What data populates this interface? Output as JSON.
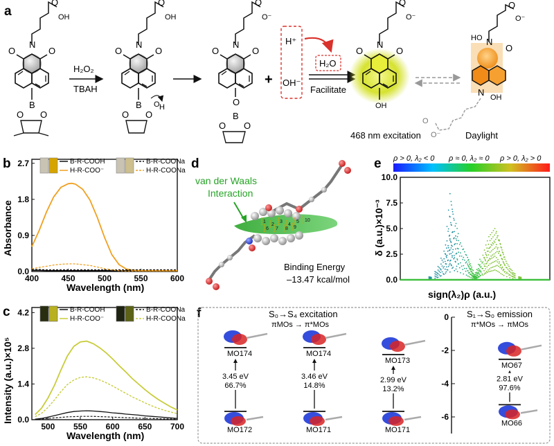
{
  "panel_labels": {
    "a": "a",
    "b": "b",
    "c": "c",
    "d": "d",
    "e": "e",
    "f": "f"
  },
  "scheme": {
    "reagent_top": "H₂O₂",
    "reagent_bottom": "TBAH",
    "plus": "+",
    "h_plus": "H⁺",
    "oh_minus": "OH⁻",
    "water": "H₂O",
    "facilitate": "Facilitate",
    "excitation_caption": "468 nm excitation",
    "daylight_caption": "Daylight",
    "colors": {
      "glow": "#d6e230",
      "orange": "#f39a1e",
      "red_dash": "#d9312b"
    }
  },
  "panel_b": {
    "ylabel": "Absorbance",
    "xlabel": "Wavelength (nm)",
    "legend": [
      {
        "label": "B-R-COOH",
        "style": "solid",
        "color": "#111111"
      },
      {
        "label": "H-R-COO⁻",
        "style": "solid",
        "color": "#f0a020"
      },
      {
        "label": "B-R-COONa",
        "style": "dash",
        "color": "#111111"
      },
      {
        "label": "H-R-COONa",
        "style": "dash",
        "color": "#f0a020"
      }
    ]
  },
  "panel_c": {
    "ylabel": "Intensity (a.u.)×10⁵",
    "xlabel": "Wavelength (nm)",
    "legend": [
      {
        "label": "B-R-COOH",
        "style": "solid",
        "color": "#111111"
      },
      {
        "label": "H-R-COO⁻",
        "style": "solid",
        "color": "#c8cc3a"
      },
      {
        "label": "B-R-COONa",
        "style": "dash",
        "color": "#111111"
      },
      {
        "label": "H-R-COONa",
        "style": "dash",
        "color": "#c8cc3a"
      }
    ]
  },
  "panel_d": {
    "vdw_label_1": "van der Waals",
    "vdw_label_2": "Interaction",
    "binding_1": "Binding Energy",
    "binding_2": "–13.47 kcal/mol",
    "contact_numbers": [
      "1",
      "2",
      "3",
      "4",
      "5",
      "6",
      "7",
      "8",
      "9",
      "10"
    ]
  },
  "panel_e": {
    "colorbar_left": "ρ > 0, λ₂ < 0",
    "colorbar_mid": "ρ ≈ 0, λ₂ ≈ 0",
    "colorbar_right": "ρ > 0, λ₂ > 0",
    "ylabel": "δ (a.u.)×10⁻³",
    "xlabel": "sign(λ₂)ρ (a.u.)"
  },
  "panel_f": {
    "title_excitation": "S₀→S₄ excitation",
    "subtitle_excitation": "πMOs → π*MOs",
    "title_emission": "S₁→S₀ emission",
    "subtitle_emission": "π*MOs → πMOs",
    "transitions": [
      {
        "upper": "MO174",
        "lower": "MO172",
        "energy": "3.45 eV",
        "weight": "66.7%"
      },
      {
        "upper": "MO174",
        "lower": "MO171",
        "energy": "3.46 eV",
        "weight": "14.8%"
      },
      {
        "upper": "MO173",
        "lower": "MO171",
        "energy": "2.99 eV",
        "weight": "13.2%"
      },
      {
        "upper": "MO67",
        "lower": "MO66",
        "energy": "2.81 eV",
        "weight": "97.6%"
      }
    ]
  },
  "chart_data": [
    {
      "type": "line",
      "panel": "b",
      "title": "",
      "xlabel": "Wavelength (nm)",
      "ylabel": "Absorbance",
      "xlim": [
        400,
        600
      ],
      "ylim": [
        0,
        2.8
      ],
      "xticks": [
        400,
        450,
        500,
        550,
        600
      ],
      "yticks": [
        0.0,
        0.9,
        1.8,
        2.7
      ],
      "x": [
        400,
        410,
        420,
        430,
        440,
        450,
        455,
        460,
        470,
        480,
        490,
        500,
        510,
        520,
        530,
        540,
        550,
        560,
        580,
        600
      ],
      "series": [
        {
          "name": "B-R-COOH",
          "values": [
            0.03,
            0.03,
            0.02,
            0.02,
            0.02,
            0.02,
            0.02,
            0.02,
            0.02,
            0.02,
            0.02,
            0.02,
            0.02,
            0.02,
            0.02,
            0.02,
            0.02,
            0.02,
            0.02,
            0.02
          ]
        },
        {
          "name": "H-R-COO⁻",
          "values": [
            0.62,
            1.02,
            1.48,
            1.86,
            2.1,
            2.19,
            2.2,
            2.18,
            2.05,
            1.78,
            1.35,
            0.85,
            0.42,
            0.17,
            0.06,
            0.03,
            0.02,
            0.02,
            0.02,
            0.02
          ]
        },
        {
          "name": "B-R-COONa",
          "values": [
            0.05,
            0.05,
            0.04,
            0.04,
            0.04,
            0.04,
            0.04,
            0.04,
            0.04,
            0.04,
            0.04,
            0.04,
            0.04,
            0.04,
            0.04,
            0.04,
            0.04,
            0.04,
            0.04,
            0.04
          ]
        },
        {
          "name": "H-R-COONa",
          "values": [
            0.07,
            0.1,
            0.13,
            0.16,
            0.18,
            0.19,
            0.19,
            0.19,
            0.17,
            0.15,
            0.11,
            0.07,
            0.04,
            0.02,
            0.01,
            0.01,
            0.01,
            0.01,
            0.01,
            0.01
          ]
        }
      ]
    },
    {
      "type": "line",
      "panel": "c",
      "title": "",
      "xlabel": "Wavelength (nm)",
      "ylabel": "Intensity (a.u.)×10⁵",
      "xlim": [
        475,
        700
      ],
      "ylim": [
        0,
        4.4
      ],
      "xticks": [
        500,
        550,
        600,
        650,
        700
      ],
      "yticks": [
        0.0,
        1.4,
        2.8,
        4.2
      ],
      "x": [
        480,
        490,
        500,
        510,
        520,
        530,
        540,
        550,
        560,
        570,
        580,
        590,
        600,
        610,
        620,
        630,
        640,
        650,
        660,
        670,
        680,
        690,
        700
      ],
      "series": [
        {
          "name": "B-R-COOH",
          "values": [
            0.02,
            0.05,
            0.1,
            0.16,
            0.22,
            0.28,
            0.32,
            0.34,
            0.35,
            0.34,
            0.32,
            0.3,
            0.27,
            0.25,
            0.22,
            0.2,
            0.18,
            0.15,
            0.13,
            0.11,
            0.09,
            0.07,
            0.05
          ]
        },
        {
          "name": "H-R-COO⁻",
          "values": [
            0.2,
            0.45,
            0.85,
            1.35,
            1.95,
            2.5,
            2.88,
            3.05,
            3.08,
            2.98,
            2.82,
            2.62,
            2.38,
            2.12,
            1.88,
            1.62,
            1.4,
            1.18,
            0.98,
            0.8,
            0.65,
            0.5,
            0.38
          ]
        },
        {
          "name": "B-R-COONa",
          "values": [
            0.02,
            0.03,
            0.05,
            0.07,
            0.09,
            0.11,
            0.12,
            0.13,
            0.13,
            0.13,
            0.12,
            0.11,
            0.1,
            0.09,
            0.08,
            0.07,
            0.06,
            0.05,
            0.05,
            0.04,
            0.03,
            0.03,
            0.02
          ]
        },
        {
          "name": "H-R-COONa",
          "values": [
            0.12,
            0.25,
            0.48,
            0.78,
            1.1,
            1.38,
            1.56,
            1.66,
            1.68,
            1.64,
            1.56,
            1.45,
            1.32,
            1.18,
            1.04,
            0.9,
            0.78,
            0.66,
            0.55,
            0.45,
            0.37,
            0.3,
            0.24
          ]
        }
      ]
    },
    {
      "type": "scatter",
      "panel": "e",
      "title": "",
      "xlabel": "sign(λ₂)ρ (a.u.)",
      "ylabel": "δ (a.u.)×10⁻³",
      "xlim": [
        -0.05,
        0.05
      ],
      "ylim": [
        0,
        10
      ],
      "yticks": [
        0.0,
        2.5,
        5.0,
        7.5,
        10.0
      ],
      "series": [
        {
          "values": [
            [
              -0.016,
              8.4
            ],
            [
              -0.015,
              7.3
            ],
            [
              -0.017,
              6.8
            ],
            [
              -0.014,
              6.4
            ],
            [
              -0.012,
              5.5
            ],
            [
              -0.018,
              5.2
            ],
            [
              -0.013,
              4.7
            ],
            [
              -0.011,
              4.2
            ],
            [
              -0.016,
              4.0
            ],
            [
              -0.009,
              3.6
            ],
            [
              -0.019,
              3.4
            ],
            [
              -0.007,
              3.0
            ],
            [
              -0.02,
              2.8
            ],
            [
              -0.005,
              2.4
            ],
            [
              -0.022,
              2.1
            ],
            [
              -0.004,
              1.9
            ],
            [
              -0.003,
              1.5
            ],
            [
              -0.024,
              1.3
            ],
            [
              -0.002,
              1.1
            ],
            [
              -0.026,
              0.8
            ],
            [
              -0.001,
              0.6
            ],
            [
              -0.03,
              0.3
            ],
            [
              0.0,
              0.4
            ],
            [
              0.001,
              0.7
            ],
            [
              0.002,
              1.0
            ],
            [
              0.003,
              1.5
            ],
            [
              0.004,
              2.0
            ],
            [
              0.006,
              2.4
            ],
            [
              0.007,
              2.9
            ],
            [
              0.008,
              3.4
            ],
            [
              0.009,
              3.8
            ],
            [
              0.01,
              4.2
            ],
            [
              0.011,
              4.4
            ],
            [
              0.012,
              4.6
            ],
            [
              0.013,
              4.8
            ],
            [
              0.014,
              5.0
            ],
            [
              0.015,
              4.7
            ],
            [
              0.016,
              4.3
            ],
            [
              0.017,
              3.8
            ],
            [
              0.018,
              3.2
            ],
            [
              0.019,
              2.7
            ],
            [
              0.02,
              2.2
            ],
            [
              0.022,
              1.6
            ],
            [
              0.024,
              1.1
            ],
            [
              0.026,
              0.7
            ],
            [
              0.03,
              0.3
            ]
          ]
        }
      ]
    },
    {
      "type": "scatter",
      "panel": "f",
      "title": "",
      "ylabel": "",
      "ylim": [
        -7,
        0
      ],
      "yticks": [
        0,
        -2,
        -4,
        -6
      ],
      "orbital_energies_eV": [
        {
          "name": "MO67",
          "value": -2.7
        },
        {
          "name": "MO66",
          "value": -5.6
        }
      ]
    }
  ]
}
